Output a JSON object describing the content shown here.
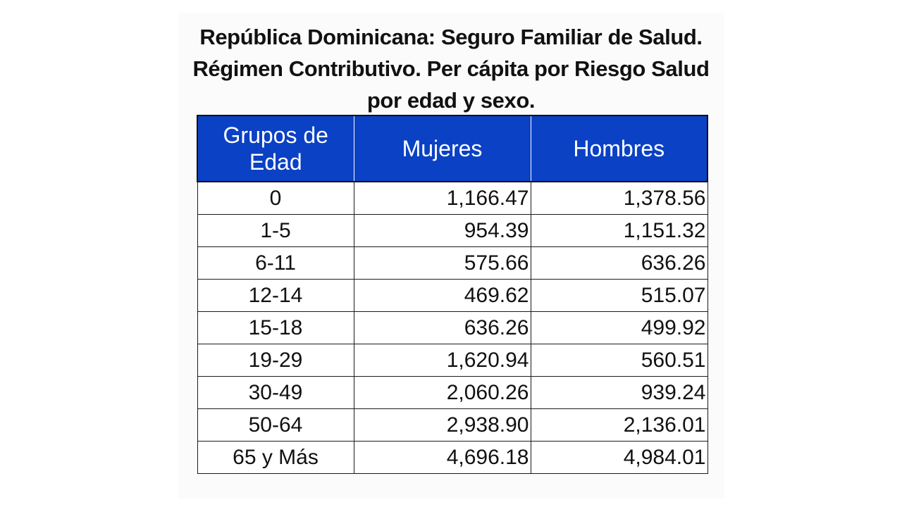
{
  "title": "República Dominicana: Seguro Familiar de Salud. Régimen Contributivo. Per cápita por Riesgo Salud por edad y sexo.",
  "table": {
    "headers": [
      "Grupos de Edad",
      "Mujeres",
      "Hombres"
    ],
    "rows": [
      [
        "0",
        "1,166.47",
        "1,378.56"
      ],
      [
        "1-5",
        "954.39",
        "1,151.32"
      ],
      [
        "6-11",
        "575.66",
        "636.26"
      ],
      [
        "12-14",
        "469.62",
        "515.07"
      ],
      [
        "15-18",
        "636.26",
        "499.92"
      ],
      [
        "19-29",
        "1,620.94",
        "560.51"
      ],
      [
        "30-49",
        "2,060.26",
        "939.24"
      ],
      [
        "50-64",
        "2,938.90",
        "2,136.01"
      ],
      [
        "65 y Más",
        "4,696.18",
        "4,984.01"
      ]
    ]
  },
  "colors": {
    "header_background": "#0b41c4",
    "header_text": "#ffffff"
  }
}
